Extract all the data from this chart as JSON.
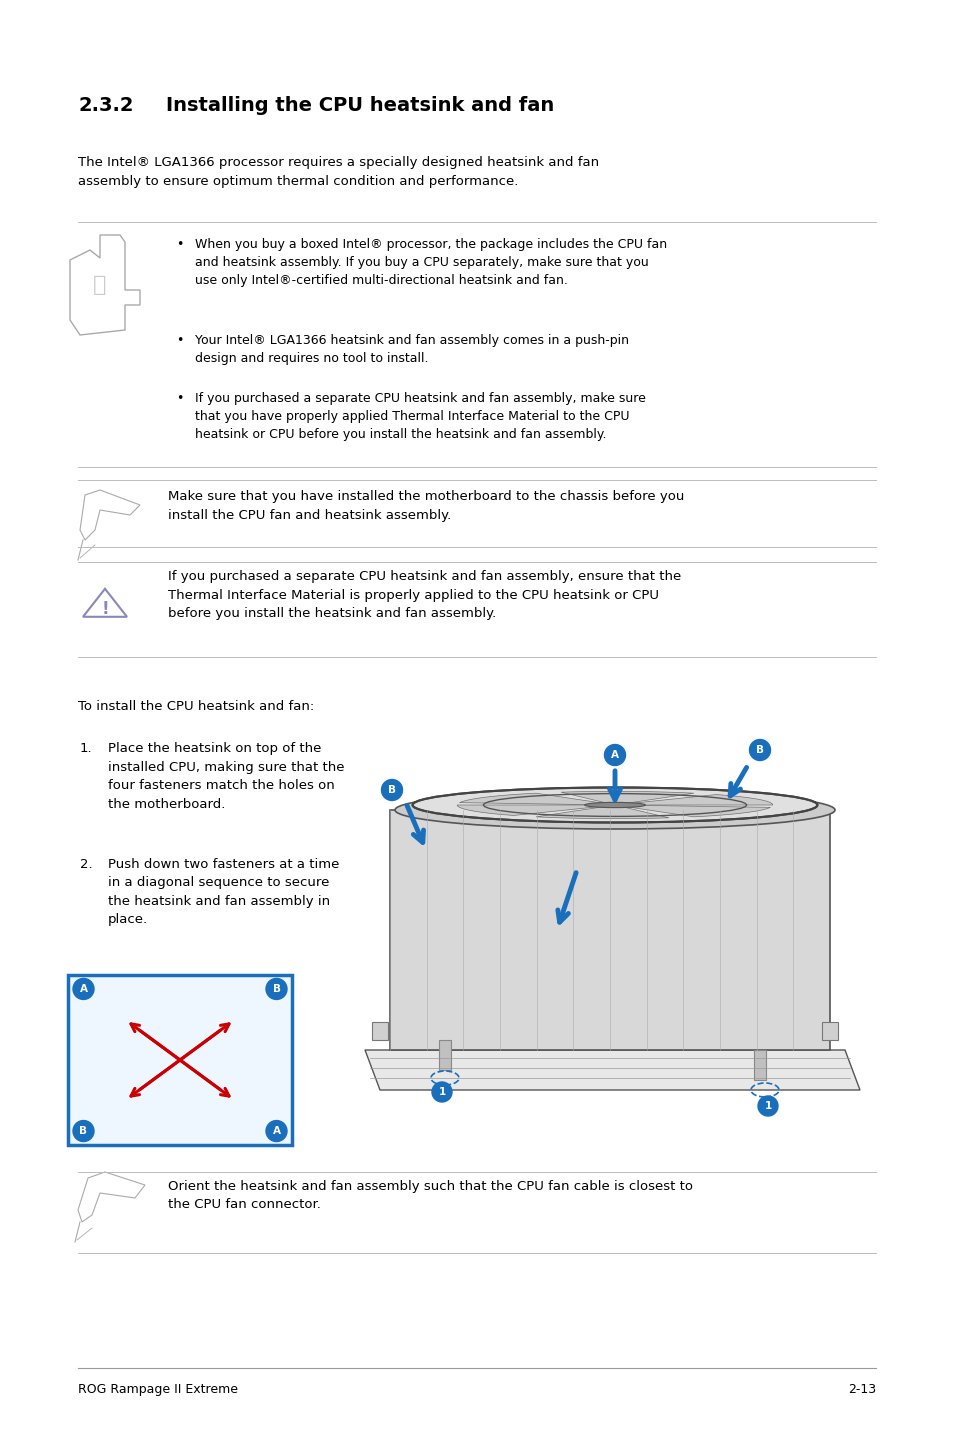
{
  "bg_color": "#ffffff",
  "text_color": "#000000",
  "page_width": 9.54,
  "page_height": 14.38,
  "section_number": "2.3.2",
  "section_title": "Installing the CPU heatsink and fan",
  "intro_text": "The Intel® LGA1366 processor requires a specially designed heatsink and fan\nassembly to ensure optimum thermal condition and performance.",
  "bullet_points": [
    "When you buy a boxed Intel® processor, the package includes the CPU fan\nand heatsink assembly. If you buy a CPU separately, make sure that you\nuse only Intel®-certified multi-directional heatsink and fan.",
    "Your Intel® LGA1366 heatsink and fan assembly comes in a push-pin\ndesign and requires no tool to install.",
    "If you purchased a separate CPU heatsink and fan assembly, make sure\nthat you have properly applied Thermal Interface Material to the CPU\nheatsink or CPU before you install the heatsink and fan assembly."
  ],
  "note_text": "Make sure that you have installed the motherboard to the chassis before you\ninstall the CPU fan and heatsink assembly.",
  "warning_text": "If you purchased a separate CPU heatsink and fan assembly, ensure that the\nThermal Interface Material is properly applied to the CPU heatsink or CPU\nbefore you install the heatsink and fan assembly.",
  "to_install_text": "To install the CPU heatsink and fan:",
  "step1_text": "Place the heatsink on top of the\ninstalled CPU, making sure that the\nfour fasteners match the holes on\nthe motherboard.",
  "step2_text": "Push down two fasteners at a time\nin a diagonal sequence to secure\nthe heatsink and fan assembly in\nplace.",
  "note2_text": "Orient the heatsink and fan assembly such that the CPU fan cable is closest to\nthe CPU fan connector.",
  "footer_left": "ROG Rampage II Extreme",
  "footer_right": "2-13",
  "line_color": "#bbbbbb",
  "arrow_color": "#cc0000",
  "box_border_color": "#1a6fbd",
  "label_color": "#1a6fbd",
  "warning_color": "#8888bb"
}
